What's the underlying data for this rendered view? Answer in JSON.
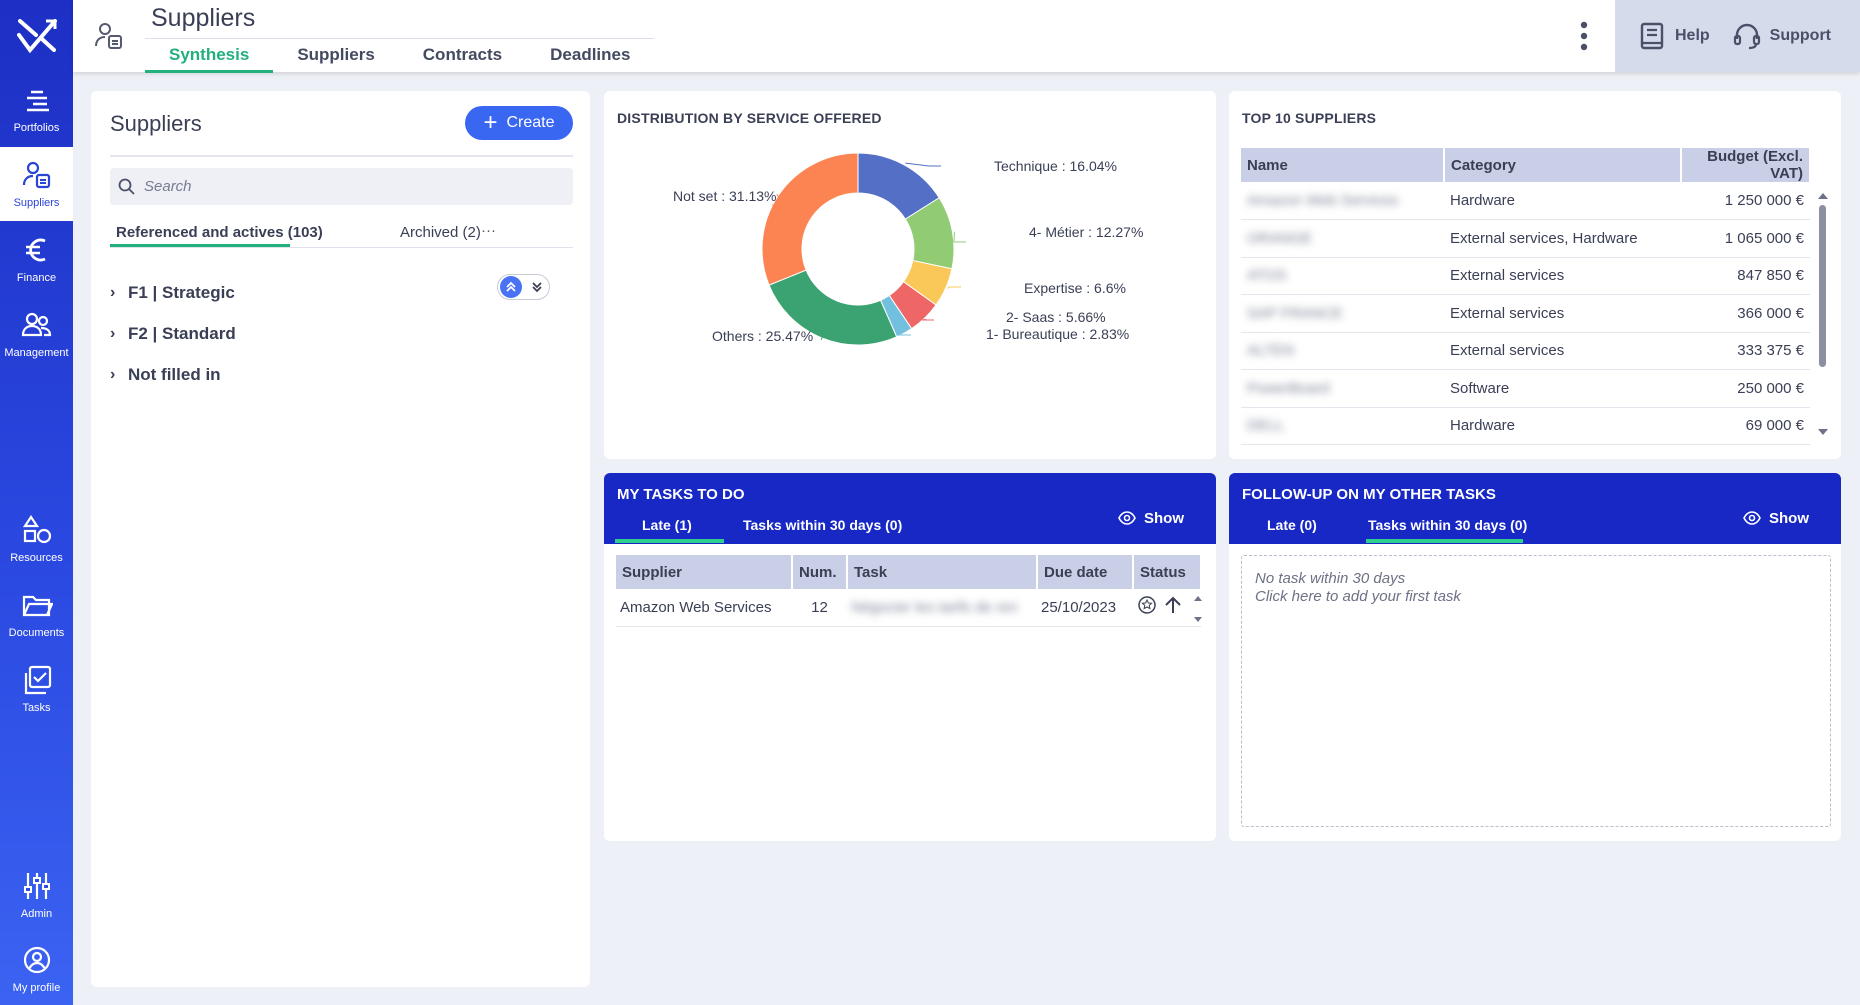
{
  "nav": {
    "items": [
      {
        "label": "Portfolios",
        "icon": "portfolios-icon"
      },
      {
        "label": "Suppliers",
        "icon": "suppliers-icon"
      },
      {
        "label": "Finance",
        "icon": "euro-icon"
      },
      {
        "label": "Management",
        "icon": "management-icon"
      },
      {
        "label": "Resources",
        "icon": "resources-icon"
      },
      {
        "label": "Documents",
        "icon": "folder-icon"
      },
      {
        "label": "Tasks",
        "icon": "tasks-icon"
      },
      {
        "label": "Admin",
        "icon": "sliders-icon"
      },
      {
        "label": "My profile",
        "icon": "profile-icon"
      }
    ],
    "active": "Suppliers"
  },
  "header": {
    "title": "Suppliers",
    "tabs": [
      "Synthesis",
      "Suppliers",
      "Contracts",
      "Deadlines"
    ],
    "active_tab": "Synthesis",
    "help_label": "Help",
    "support_label": "Support"
  },
  "suppliers_panel": {
    "title": "Suppliers",
    "create_label": "Create",
    "search_placeholder": "Search",
    "tab_referenced": "Referenced and actives (103)",
    "tab_archived": "Archived (2)",
    "more": "···",
    "tree": [
      "F1 | Strategic",
      "F2 | Standard",
      "Not filled in"
    ]
  },
  "distribution": {
    "title": "DISTRIBUTION BY SERVICE OFFERED"
  },
  "chart_data": {
    "type": "pie",
    "title": "DISTRIBUTION BY SERVICE OFFERED",
    "categories": [
      "Technique",
      "4- Métier",
      "Expertise",
      "2- Saas",
      "1- Bureautique",
      "Others",
      "Not set"
    ],
    "values": [
      16.04,
      12.27,
      6.6,
      5.66,
      2.83,
      25.47,
      31.13
    ],
    "labels": [
      "Technique : 16.04%",
      "4- Métier : 12.27%",
      "Expertise : 6.6%",
      "2- Saas : 5.66%",
      "1- Bureautique : 2.83%",
      "Others : 25.47%",
      "Not set : 31.13%"
    ],
    "colors": [
      "#5470c6",
      "#91cc75",
      "#fac858",
      "#ee6666",
      "#73c0de",
      "#3ba272",
      "#fc8452"
    ]
  },
  "top_suppliers": {
    "title": "TOP 10 SUPPLIERS",
    "columns": [
      "Name",
      "Category",
      "Budget (Excl. VAT)"
    ],
    "rows": [
      {
        "name": "Amazon Web Services",
        "category": "Hardware",
        "budget": "1 250 000 €"
      },
      {
        "name": "ORANGE",
        "category": "External services, Hardware",
        "budget": "1 065 000 €"
      },
      {
        "name": "ATOS",
        "category": "External services",
        "budget": "847 850 €"
      },
      {
        "name": "SAP FRANCE",
        "category": "External services",
        "budget": "366 000 €"
      },
      {
        "name": "ALTEN",
        "category": "External services",
        "budget": "333 375 €"
      },
      {
        "name": "PowerBoard",
        "category": "Software",
        "budget": "250 000 €"
      },
      {
        "name": "DELL",
        "category": "Hardware",
        "budget": "69 000 €"
      }
    ]
  },
  "my_tasks": {
    "title": "MY TASKS TO DO",
    "tab_late": "Late (1)",
    "tab_30": "Tasks within 30 days (0)",
    "show_label": "Show",
    "columns": [
      "Supplier",
      "Num.",
      "Task",
      "Due date",
      "Status"
    ],
    "rows": [
      {
        "supplier": "Amazon Web Services",
        "num": "12",
        "task": "Négocier les tarifs de ren",
        "due": "25/10/2023"
      }
    ]
  },
  "follow_up": {
    "title": "FOLLOW-UP ON MY OTHER TASKS",
    "tab_late": "Late (0)",
    "tab_30": "Tasks within 30 days (0)",
    "show_label": "Show",
    "empty_line1": "No task within 30 days",
    "empty_line2": "Click here to add your first task"
  }
}
